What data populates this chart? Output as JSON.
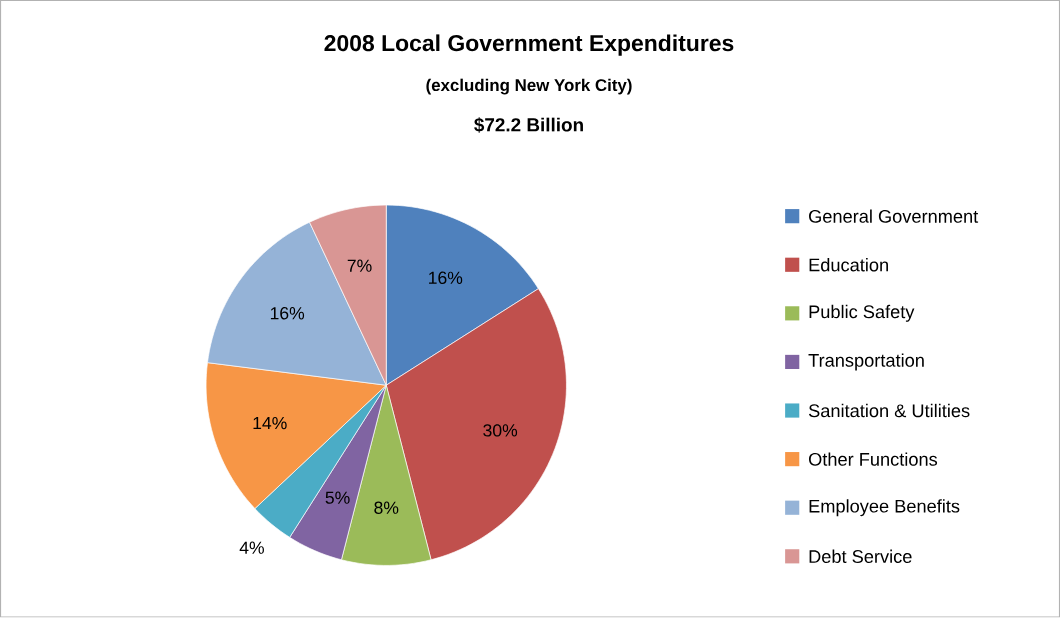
{
  "chart_data": {
    "type": "pie",
    "title": "2008 Local Government Expenditures",
    "subtitle": "(excluding New York City)",
    "annotations": [
      "$72.2 Billion"
    ],
    "categories": [
      "General Government",
      "Education",
      "Public Safety",
      "Transportation",
      "Sanitation & Utilities",
      "Other Functions",
      "Employee Benefits",
      "Debt Service"
    ],
    "values": [
      16,
      30,
      8,
      5,
      4,
      14,
      16,
      7
    ],
    "colors": [
      "#4f81bd",
      "#c0504d",
      "#9bbb59",
      "#8064a2",
      "#4bacc6",
      "#f79646",
      "#95b3d7",
      "#d99694"
    ],
    "value_labels": [
      "16%",
      "30%",
      "8%",
      "5%",
      "4%",
      "14%",
      "16%",
      "7%"
    ],
    "legend": "right"
  }
}
